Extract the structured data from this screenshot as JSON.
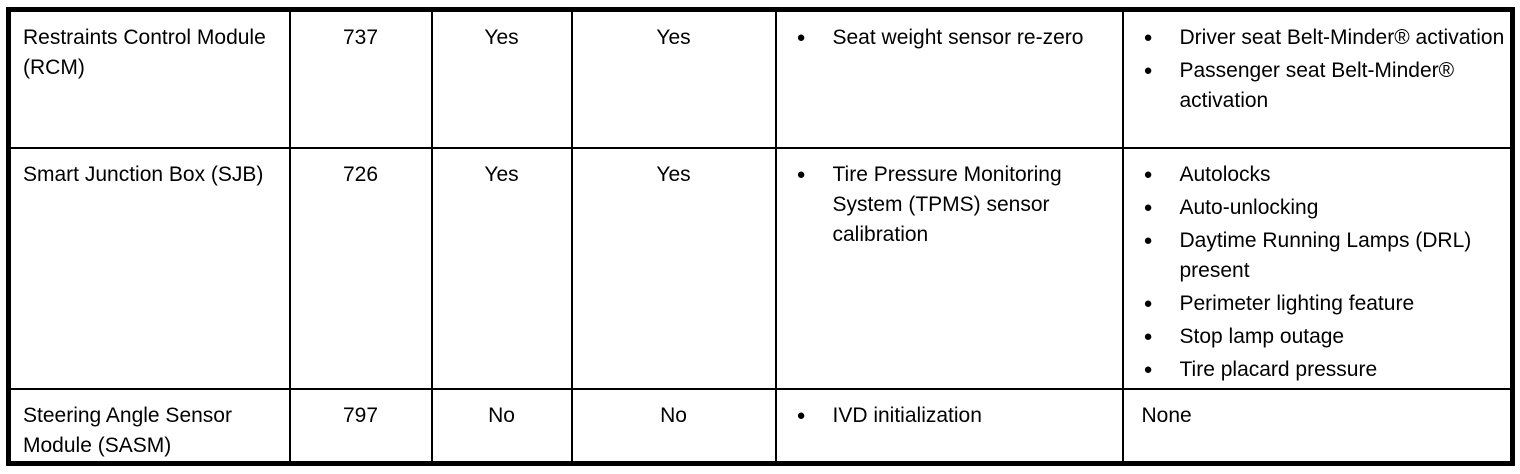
{
  "page": {
    "background_color": "#ffffff",
    "border_color": "#000000",
    "text_color": "#000000"
  },
  "icons": {
    "bullet": "●"
  },
  "table": {
    "rows": [
      {
        "module": "Restraints Control Module (RCM)",
        "address": "737",
        "flag1": "Yes",
        "flag2": "Yes",
        "procedures": [
          "Seat weight sensor re-zero"
        ],
        "features": [
          "Driver seat Belt-Minder® activation",
          "Passenger seat Belt-Minder® activation"
        ]
      },
      {
        "module": "Smart Junction Box (SJB)",
        "address": "726",
        "flag1": "Yes",
        "flag2": "Yes",
        "procedures": [
          "Tire Pressure Monitoring System (TPMS) sensor calibration"
        ],
        "features": [
          "Autolocks",
          "Auto-unlocking",
          "Daytime Running Lamps (DRL) present",
          "Perimeter lighting feature",
          "Stop lamp outage",
          "Tire placard pressure"
        ]
      },
      {
        "module": "Steering Angle Sensor Module (SASM)",
        "address": "797",
        "flag1": "No",
        "flag2": "No",
        "procedures": [
          "IVD initialization"
        ],
        "features": [],
        "features_text": "None"
      }
    ]
  }
}
